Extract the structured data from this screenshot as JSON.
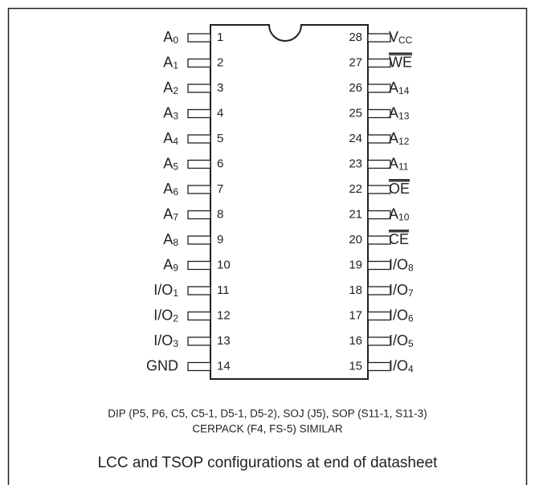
{
  "pins_left": [
    {
      "number": 1,
      "name": "A",
      "sub": "0"
    },
    {
      "number": 2,
      "name": "A",
      "sub": "1"
    },
    {
      "number": 3,
      "name": "A",
      "sub": "2"
    },
    {
      "number": 4,
      "name": "A",
      "sub": "3"
    },
    {
      "number": 5,
      "name": "A",
      "sub": "4"
    },
    {
      "number": 6,
      "name": "A",
      "sub": "5"
    },
    {
      "number": 7,
      "name": "A",
      "sub": "6"
    },
    {
      "number": 8,
      "name": "A",
      "sub": "7"
    },
    {
      "number": 9,
      "name": "A",
      "sub": "8"
    },
    {
      "number": 10,
      "name": "A",
      "sub": "9"
    },
    {
      "number": 11,
      "name": "I/O",
      "sub": "1"
    },
    {
      "number": 12,
      "name": "I/O",
      "sub": "2"
    },
    {
      "number": 13,
      "name": "I/O",
      "sub": "3"
    },
    {
      "number": 14,
      "name": "GND"
    }
  ],
  "pins_right": [
    {
      "number": 28,
      "name": "V",
      "sub": "CC"
    },
    {
      "number": 27,
      "name": "WE",
      "overline": true
    },
    {
      "number": 26,
      "name": "A",
      "sub": "14"
    },
    {
      "number": 25,
      "name": "A",
      "sub": "13"
    },
    {
      "number": 24,
      "name": "A",
      "sub": "12"
    },
    {
      "number": 23,
      "name": "A",
      "sub": "11"
    },
    {
      "number": 22,
      "name": "OE",
      "overline": true
    },
    {
      "number": 21,
      "name": "A",
      "sub": "10"
    },
    {
      "number": 20,
      "name": "CE",
      "overline": true
    },
    {
      "number": 19,
      "name": "I/O",
      "sub": "8"
    },
    {
      "number": 18,
      "name": "I/O",
      "sub": "7"
    },
    {
      "number": 17,
      "name": "I/O",
      "sub": "6"
    },
    {
      "number": 16,
      "name": "I/O",
      "sub": "5"
    },
    {
      "number": 15,
      "name": "I/O",
      "sub": "4"
    }
  ],
  "notes": [
    "DIP (P5, P6, C5, C5-1, D5-1, D5-2), SOJ (J5), SOP (S11-1, S11-3)",
    "CERPACK (F4, FS-5) SIMILAR"
  ],
  "caption": "LCC and TSOP configurations at end of datasheet"
}
